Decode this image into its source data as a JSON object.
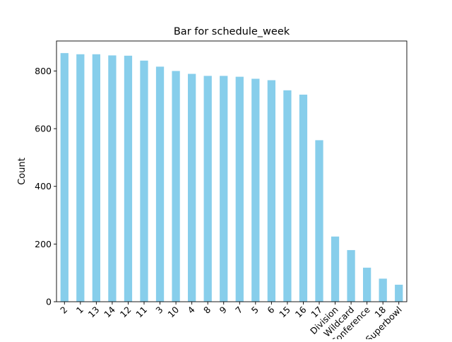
{
  "chart_data": {
    "type": "bar",
    "title": "Bar for schedule_week",
    "xlabel": "",
    "ylabel": "Count",
    "categories": [
      "2",
      "1",
      "13",
      "14",
      "12",
      "11",
      "3",
      "10",
      "4",
      "8",
      "9",
      "7",
      "5",
      "6",
      "15",
      "16",
      "17",
      "Division",
      "Wildcard",
      "Conference",
      "18",
      "Superbowl"
    ],
    "values": [
      862,
      858,
      858,
      854,
      853,
      836,
      815,
      800,
      790,
      783,
      783,
      780,
      773,
      768,
      733,
      718,
      560,
      226,
      179,
      118,
      80,
      59
    ],
    "ylim": [
      0,
      904
    ],
    "yticks": [
      0,
      200,
      400,
      600,
      800
    ],
    "bar_color": "#87ceeb",
    "grid": false,
    "legend": "none"
  }
}
